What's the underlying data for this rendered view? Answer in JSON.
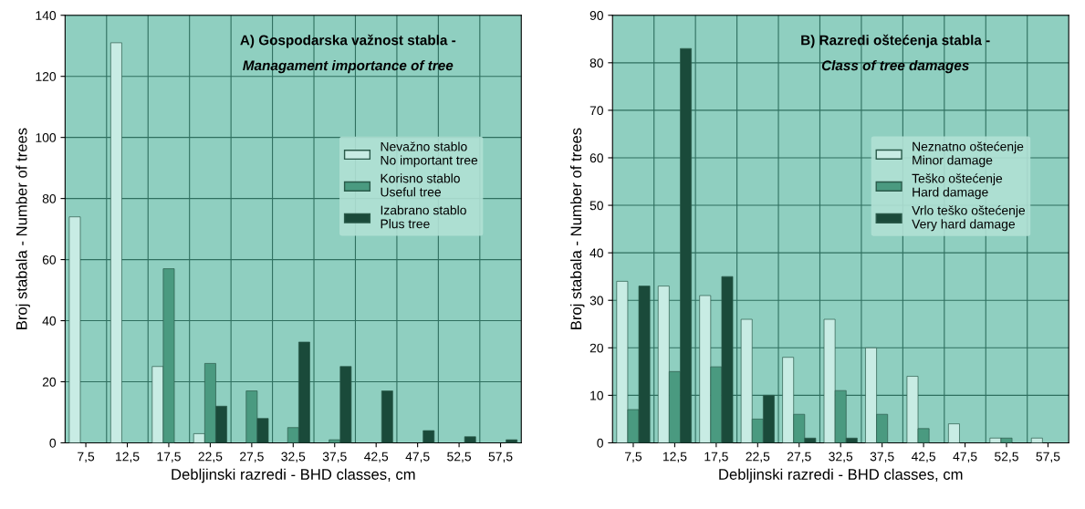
{
  "chart_data": [
    {
      "type": "bar",
      "title": "A) Gospodarska važnost stabla -",
      "subtitle": "Managament importance of tree",
      "xlabel": "Debljinski razredi - BHD classes, cm",
      "ylabel": "Broj stabala - Number of trees",
      "categories": [
        "7,5",
        "12,5",
        "17,5",
        "22,5",
        "27,5",
        "32,5",
        "37,5",
        "42,5",
        "47,5",
        "52,5",
        "57,5"
      ],
      "series": [
        {
          "name": "Nevažno stablo\nNo important tree",
          "color": "#c8ece4",
          "values": [
            74,
            131,
            25,
            3,
            0,
            0,
            0,
            0,
            0,
            0,
            0
          ]
        },
        {
          "name": "Korisno stablo\nUseful tree",
          "color": "#4a9a80",
          "values": [
            0,
            0,
            57,
            26,
            17,
            5,
            1,
            0,
            0,
            0,
            0
          ]
        },
        {
          "name": "Izabrano stablo\nPlus tree",
          "color": "#1a4a3a",
          "values": [
            0,
            0,
            0,
            12,
            8,
            33,
            25,
            17,
            4,
            2,
            1
          ]
        }
      ],
      "ylim": [
        0,
        140
      ],
      "yticks": [
        0,
        20,
        40,
        60,
        80,
        100,
        120,
        140
      ],
      "grid": true,
      "legend": "right"
    },
    {
      "type": "bar",
      "title": "B) Razredi oštećenja stabla -",
      "subtitle": "Class of tree damages",
      "xlabel": "Debljinski razredi - BHD classes, cm",
      "ylabel": "Broj stabala - Number of trees",
      "categories": [
        "7,5",
        "12,5",
        "17,5",
        "22,5",
        "27,5",
        "32,5",
        "37,5",
        "42,5",
        "47,5",
        "52,5",
        "57,5"
      ],
      "series": [
        {
          "name": "Neznatno oštećenje\nMinor damage",
          "color": "#c8ece4",
          "values": [
            34,
            33,
            31,
            26,
            18,
            26,
            20,
            14,
            4,
            1,
            1
          ]
        },
        {
          "name": "Teško oštećenje\nHard damage",
          "color": "#4a9a80",
          "values": [
            7,
            15,
            16,
            5,
            6,
            11,
            6,
            3,
            0,
            1,
            0
          ]
        },
        {
          "name": "Vrlo teško oštećenje\nVery hard damage",
          "color": "#1a4a3a",
          "values": [
            33,
            83,
            35,
            10,
            1,
            1,
            0,
            0,
            0,
            0,
            0
          ]
        }
      ],
      "ylim": [
        0,
        90
      ],
      "yticks": [
        0,
        10,
        20,
        30,
        40,
        50,
        60,
        70,
        80,
        90
      ],
      "grid": true,
      "legend": "right"
    }
  ]
}
